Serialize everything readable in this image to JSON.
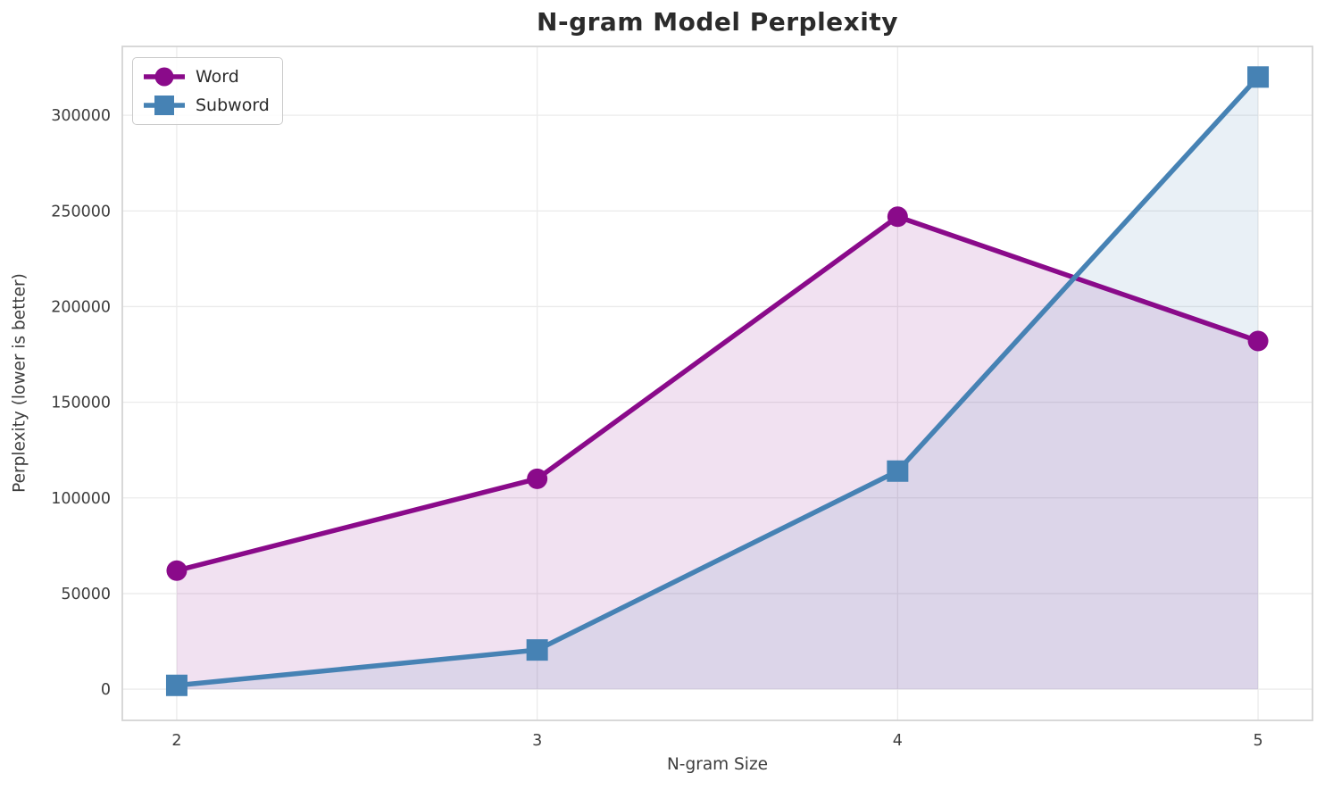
{
  "chart_data": {
    "type": "line",
    "title": "N-gram Model Perplexity",
    "xlabel": "N-gram Size",
    "ylabel": "Perplexity (lower is better)",
    "x": [
      2,
      3,
      4,
      5
    ],
    "xtick_labels": [
      "2",
      "3",
      "4",
      "5"
    ],
    "series": [
      {
        "name": "Word",
        "color": "#8a0a8a",
        "marker": "circle",
        "values": [
          62000,
          110000,
          247000,
          182000
        ]
      },
      {
        "name": "Subword",
        "color": "#4682b4",
        "marker": "square",
        "values": [
          2000,
          20500,
          114000,
          320000
        ]
      }
    ],
    "yticks": [
      0,
      50000,
      100000,
      150000,
      200000,
      250000,
      300000
    ],
    "ytick_labels": [
      "0",
      "50000",
      "100000",
      "150000",
      "200000",
      "250000",
      "300000"
    ],
    "ylim": [
      -16300,
      336000
    ],
    "xlim": [
      1.849,
      5.151
    ],
    "fill_to_zero": true,
    "fill_alpha": 0.12,
    "grid": true,
    "legend_position": "upper left",
    "grid_color": "#ebebeb",
    "spine_color": "#d4d4d4",
    "tick_color": "#3d3d3d",
    "line_width": 5.5
  }
}
